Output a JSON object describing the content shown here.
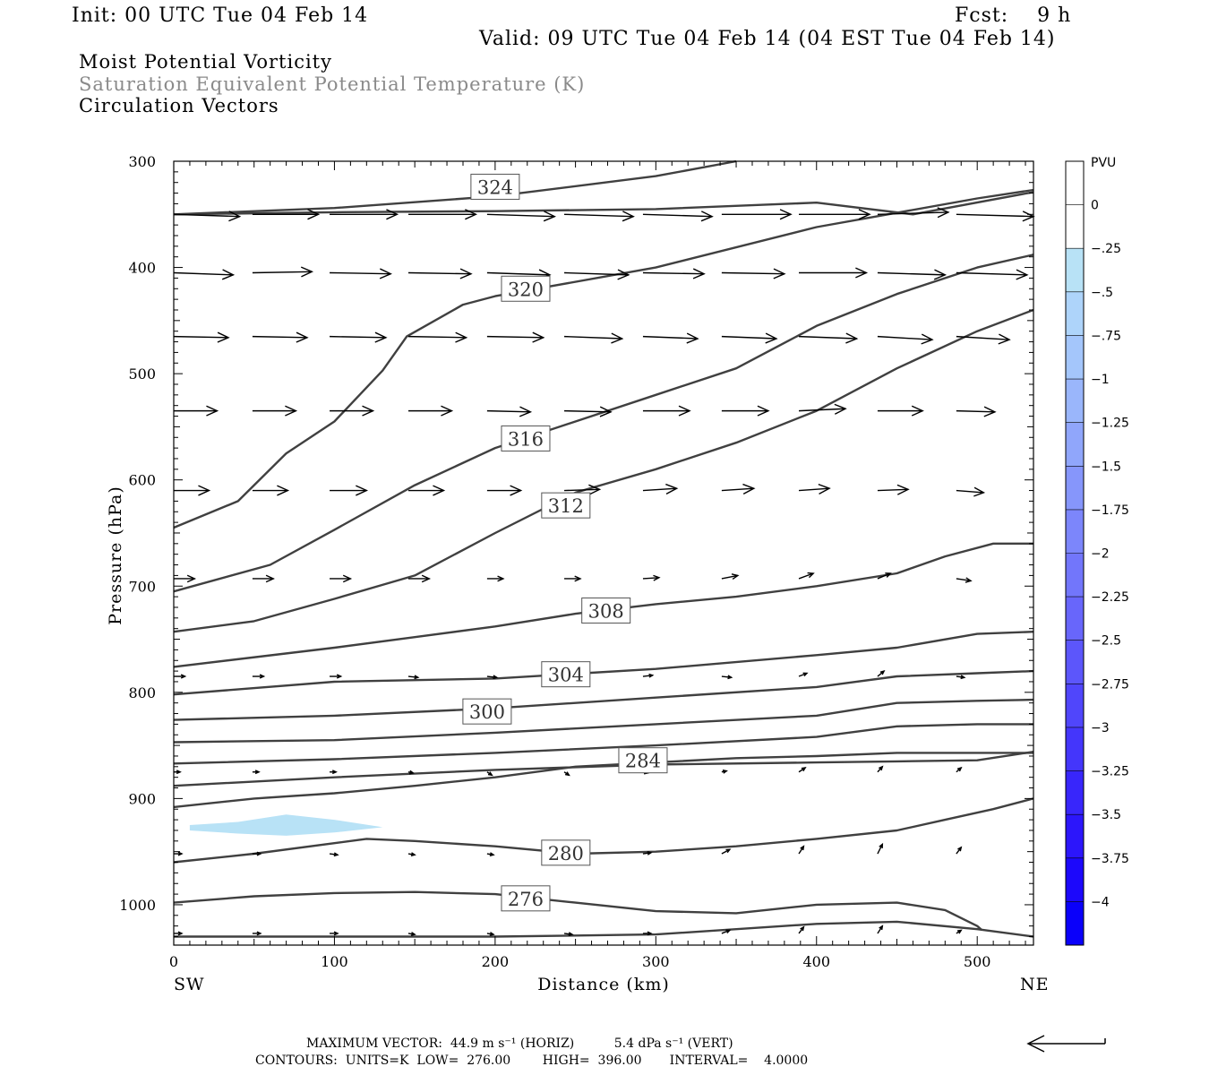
{
  "header": {
    "init": "Init: 00 UTC Tue 04 Feb 14",
    "fcst": "Fcst:    9 h",
    "valid": "Valid: 09 UTC Tue 04 Feb 14 (04 EST Tue 04 Feb 14)",
    "field1": "Moist Potential Vorticity",
    "field2": "Saturation Equivalent Potential Temperature (K)",
    "field3": "Circulation Vectors"
  },
  "footer": {
    "max_vector": "MAXIMUM VECTOR:  44.9 m s⁻¹ (HORIZ)          5.4 dPa s⁻¹ (VERT)",
    "contours": "CONTOURS:  UNITS=K  LOW=  276.00        HIGH=  396.00       INTERVAL=    4.0000"
  },
  "colors": {
    "contour": "#404040",
    "vector": "#000000",
    "pv_fill": "#b8e2f6"
  },
  "chart_data": {
    "type": "cross-section",
    "xlabel": "Distance (km)",
    "ylabel": "Pressure (hPa)",
    "xlim": [
      0,
      535
    ],
    "ylim": [
      1038,
      300
    ],
    "y_scale": "linear, inverted",
    "x_ticks": [
      "0",
      "100",
      "200",
      "300",
      "400",
      "500"
    ],
    "y_ticks": [
      "300",
      "400",
      "500",
      "600",
      "700",
      "800",
      "900",
      "1000"
    ],
    "x_end_labels": {
      "left": "SW",
      "right": "NE"
    },
    "colorbar": {
      "title": "PVU",
      "labels": [
        "0",
        "-.25",
        "-.5",
        "-.75",
        "-1",
        "-1.25",
        "-1.5",
        "-1.75",
        "-2",
        "-2.25",
        "-2.5",
        "-2.75",
        "-3",
        "-3.25",
        "-3.5",
        "-3.75",
        "-4"
      ],
      "colors": [
        "#ffffff",
        "#ffffff",
        "#b8e2f6",
        "#aed4fa",
        "#a4c6fb",
        "#9ab6fb",
        "#90a6fb",
        "#8696fb",
        "#7c86fb",
        "#7276fb",
        "#6866fb",
        "#5c56fb",
        "#5046fb",
        "#4436fb",
        "#3826fb",
        "#2c16fb",
        "#1c08fb",
        "#0a00fa"
      ]
    },
    "contour_labels": [
      "324",
      "320",
      "316",
      "312",
      "308",
      "304",
      "300",
      "284",
      "280",
      "276"
    ],
    "contours": [
      {
        "label": "324",
        "points": [
          [
            0,
            350
          ],
          [
            100,
            344
          ],
          [
            200,
            333
          ],
          [
            300,
            314
          ],
          [
            350,
            300
          ]
        ]
      },
      {
        "label": "",
        "points": [
          [
            0,
            350
          ],
          [
            100,
            348
          ],
          [
            200,
            347
          ],
          [
            300,
            345
          ],
          [
            400,
            339
          ],
          [
            460,
            350
          ],
          [
            535,
            329
          ]
        ]
      },
      {
        "label": "320",
        "points": [
          [
            0,
            645
          ],
          [
            40,
            620
          ],
          [
            70,
            575
          ],
          [
            100,
            545
          ],
          [
            130,
            497
          ],
          [
            145,
            465
          ],
          [
            180,
            435
          ],
          [
            200,
            427
          ],
          [
            300,
            400
          ],
          [
            400,
            362
          ],
          [
            500,
            335
          ],
          [
            535,
            327
          ]
        ]
      },
      {
        "label": "316",
        "points": [
          [
            0,
            705
          ],
          [
            60,
            680
          ],
          [
            100,
            647
          ],
          [
            150,
            605
          ],
          [
            200,
            570
          ],
          [
            300,
            520
          ],
          [
            350,
            495
          ],
          [
            400,
            455
          ],
          [
            450,
            425
          ],
          [
            500,
            400
          ],
          [
            535,
            388
          ]
        ]
      },
      {
        "label": "312",
        "points": [
          [
            0,
            743
          ],
          [
            50,
            733
          ],
          [
            100,
            712
          ],
          [
            150,
            690
          ],
          [
            200,
            650
          ],
          [
            250,
            612
          ],
          [
            300,
            590
          ],
          [
            350,
            565
          ],
          [
            400,
            535
          ],
          [
            450,
            495
          ],
          [
            500,
            460
          ],
          [
            535,
            440
          ]
        ]
      },
      {
        "label": "308",
        "points": [
          [
            0,
            776
          ],
          [
            100,
            758
          ],
          [
            150,
            748
          ],
          [
            200,
            738
          ],
          [
            250,
            726
          ],
          [
            300,
            717
          ],
          [
            350,
            710
          ],
          [
            400,
            700
          ],
          [
            450,
            688
          ],
          [
            480,
            672
          ],
          [
            510,
            660
          ],
          [
            535,
            660
          ]
        ]
      },
      {
        "label": "304",
        "points": [
          [
            0,
            802
          ],
          [
            100,
            790
          ],
          [
            200,
            787
          ],
          [
            300,
            778
          ],
          [
            400,
            765
          ],
          [
            450,
            758
          ],
          [
            500,
            745
          ],
          [
            535,
            743
          ]
        ]
      },
      {
        "label": "300",
        "points": [
          [
            0,
            826
          ],
          [
            100,
            822
          ],
          [
            200,
            815
          ],
          [
            300,
            805
          ],
          [
            400,
            795
          ],
          [
            450,
            785
          ],
          [
            500,
            782
          ],
          [
            535,
            780
          ]
        ]
      },
      {
        "label": "",
        "points": [
          [
            0,
            847
          ],
          [
            100,
            845
          ],
          [
            200,
            838
          ],
          [
            300,
            830
          ],
          [
            400,
            822
          ],
          [
            450,
            810
          ],
          [
            500,
            808
          ],
          [
            535,
            807
          ]
        ]
      },
      {
        "label": "",
        "points": [
          [
            0,
            867
          ],
          [
            100,
            863
          ],
          [
            200,
            857
          ],
          [
            300,
            850
          ],
          [
            400,
            842
          ],
          [
            450,
            832
          ],
          [
            500,
            830
          ],
          [
            535,
            830
          ]
        ]
      },
      {
        "label": "",
        "points": [
          [
            0,
            888
          ],
          [
            100,
            880
          ],
          [
            200,
            873
          ],
          [
            300,
            868
          ],
          [
            400,
            866
          ],
          [
            450,
            865
          ],
          [
            500,
            864
          ],
          [
            535,
            856
          ]
        ]
      },
      {
        "label": "284",
        "points": [
          [
            0,
            908
          ],
          [
            50,
            900
          ],
          [
            100,
            895
          ],
          [
            150,
            888
          ],
          [
            200,
            880
          ],
          [
            250,
            870
          ],
          [
            300,
            866
          ],
          [
            350,
            862
          ],
          [
            400,
            860
          ],
          [
            450,
            857
          ],
          [
            535,
            857
          ]
        ]
      },
      {
        "label": "280",
        "points": [
          [
            0,
            960
          ],
          [
            50,
            952
          ],
          [
            100,
            942
          ],
          [
            120,
            938
          ],
          [
            150,
            940
          ],
          [
            200,
            945
          ],
          [
            250,
            952
          ],
          [
            300,
            950
          ],
          [
            350,
            945
          ],
          [
            400,
            938
          ],
          [
            450,
            930
          ],
          [
            480,
            920
          ],
          [
            510,
            910
          ],
          [
            535,
            900
          ]
        ]
      },
      {
        "label": "276",
        "points": [
          [
            0,
            998
          ],
          [
            50,
            992
          ],
          [
            100,
            989
          ],
          [
            150,
            988
          ],
          [
            200,
            990
          ],
          [
            250,
            998
          ],
          [
            300,
            1006
          ],
          [
            350,
            1008
          ],
          [
            400,
            1000
          ],
          [
            450,
            998
          ],
          [
            480,
            1005
          ],
          [
            500,
            1020
          ],
          [
            503,
            1024
          ]
        ]
      },
      {
        "label": "",
        "points": [
          [
            0,
            1030
          ],
          [
            100,
            1030
          ],
          [
            200,
            1030
          ],
          [
            300,
            1028
          ],
          [
            400,
            1018
          ],
          [
            450,
            1016
          ],
          [
            500,
            1023
          ],
          [
            535,
            1030
          ]
        ]
      }
    ],
    "pv_regions": [
      {
        "value": -0.5,
        "color": "#b8e2f6",
        "points": [
          [
            10,
            925
          ],
          [
            40,
            922
          ],
          [
            70,
            915
          ],
          [
            100,
            920
          ],
          [
            130,
            927
          ],
          [
            100,
            932
          ],
          [
            70,
            935
          ],
          [
            40,
            933
          ],
          [
            10,
            930
          ]
        ]
      }
    ],
    "vectors": {
      "units": "km / hPa",
      "rows": [
        {
          "p": 350,
          "x0": [
            0,
            49,
            97,
            146,
            195,
            243,
            292,
            341,
            389,
            438,
            487
          ],
          "x1": [
            41,
            90,
            139,
            188,
            237,
            286,
            335,
            384,
            433,
            482,
            535
          ],
          "p1": [
            352,
            350,
            350,
            350,
            352,
            352,
            352,
            350,
            350,
            348,
            352
          ]
        },
        {
          "p": 405,
          "x0": [
            0,
            49,
            97,
            146,
            195,
            243,
            292,
            341,
            389,
            438,
            487
          ],
          "x1": [
            37,
            86,
            135,
            185,
            234,
            283,
            330,
            380,
            431,
            480,
            531
          ],
          "p1": [
            407,
            404,
            406,
            406,
            407,
            407,
            406,
            406,
            405,
            407,
            407
          ]
        },
        {
          "p": 465,
          "x0": [
            0,
            49,
            97,
            146,
            195,
            243,
            292,
            341,
            389,
            438,
            487
          ],
          "x1": [
            34,
            83,
            132,
            182,
            230,
            279,
            326,
            375,
            425,
            472,
            520
          ],
          "p1": [
            466,
            466,
            466,
            466,
            466,
            467,
            467,
            467,
            467,
            468,
            468
          ]
        },
        {
          "p": 535,
          "x0": [
            0,
            49,
            97,
            146,
            195,
            243,
            292,
            341,
            389,
            438,
            487
          ],
          "x1": [
            27,
            76,
            124,
            173,
            222,
            272,
            321,
            370,
            418,
            466,
            511
          ],
          "p1": [
            535,
            535,
            535,
            535,
            536,
            536,
            535,
            535,
            533,
            535,
            536
          ]
        },
        {
          "p": 610,
          "x0": [
            0,
            49,
            97,
            146,
            195,
            243,
            292,
            341,
            389,
            438,
            487
          ],
          "x1": [
            22,
            71,
            120,
            168,
            216,
            265,
            313,
            361,
            408,
            457,
            504
          ],
          "p1": [
            610,
            610,
            610,
            610,
            610,
            609,
            608,
            608,
            608,
            609,
            612
          ]
        },
        {
          "p": 693,
          "x0": [
            0,
            49,
            97,
            146,
            195,
            243,
            292,
            341,
            389,
            438,
            487
          ],
          "x1": [
            13,
            62,
            110,
            159,
            205,
            253,
            302,
            351,
            398,
            446,
            496
          ],
          "p1": [
            693,
            693,
            693,
            693,
            693,
            693,
            692,
            690,
            688,
            688,
            695
          ]
        },
        {
          "p": 785,
          "x0": [
            0,
            49,
            97,
            146,
            195,
            243,
            292,
            341,
            389,
            438,
            487
          ],
          "x1": [
            7,
            56,
            104,
            152,
            201,
            250,
            298,
            347,
            394,
            442,
            492
          ],
          "p1": [
            785,
            785,
            785,
            786,
            786,
            785,
            784,
            786,
            782,
            780,
            786
          ]
        },
        {
          "p": 875,
          "x0": [
            0,
            49,
            97,
            146,
            195,
            243,
            292,
            341,
            389,
            438,
            487
          ],
          "x1": [
            4,
            53,
            101,
            149,
            198,
            246,
            295,
            344,
            393,
            441,
            490
          ],
          "p1": [
            875,
            875,
            875,
            876,
            878,
            878,
            876,
            874,
            871,
            870,
            871
          ]
        },
        {
          "p": 952,
          "x0": [
            0,
            49,
            97,
            146,
            195,
            243,
            292,
            341,
            389,
            438,
            487
          ],
          "x1": [
            5,
            54,
            102,
            150,
            199,
            248,
            297,
            346,
            392,
            441,
            490
          ],
          "p1": [
            952,
            952,
            953,
            953,
            953,
            953,
            951,
            948,
            945,
            943,
            946
          ]
        },
        {
          "p": 1027,
          "x0": [
            0,
            49,
            97,
            146,
            195,
            243,
            292,
            341,
            389,
            438,
            487
          ],
          "x1": [
            5,
            54,
            102,
            150,
            199,
            248,
            297,
            346,
            392,
            441,
            490
          ],
          "p1": [
            1027,
            1027,
            1027,
            1028,
            1028,
            1028,
            1027,
            1024,
            1021,
            1020,
            1024
          ]
        }
      ]
    }
  }
}
